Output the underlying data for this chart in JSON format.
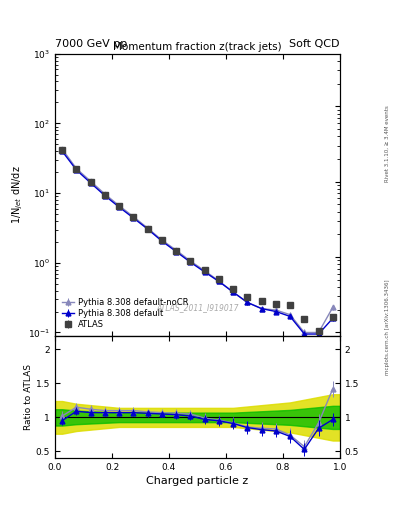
{
  "title": "Momentum fraction z(track jets)",
  "header_left": "7000 GeV pp",
  "header_right": "Soft QCD",
  "ylabel_main": "1/N$_{jet}$ dN/dz",
  "ylabel_ratio": "Ratio to ATLAS",
  "xlabel": "Charged particle z",
  "watermark": "ATLAS_2011_I919017",
  "rivet_label": "Rivet 3.1.10, ≥ 3.4M events",
  "arxiv_label": "mcplots.cern.ch [arXiv:1306.3436]",
  "atlas_x": [
    0.025,
    0.075,
    0.125,
    0.175,
    0.225,
    0.275,
    0.325,
    0.375,
    0.425,
    0.475,
    0.525,
    0.575,
    0.625,
    0.675,
    0.725,
    0.775,
    0.825,
    0.875,
    0.925,
    0.975
  ],
  "atlas_y": [
    42.0,
    22.0,
    14.5,
    9.5,
    6.5,
    4.5,
    3.1,
    2.1,
    1.5,
    1.05,
    0.78,
    0.58,
    0.42,
    0.32,
    0.28,
    0.26,
    0.25,
    0.155,
    0.105,
    0.165
  ],
  "atlas_yerr": [
    2.0,
    1.0,
    0.7,
    0.5,
    0.3,
    0.2,
    0.15,
    0.1,
    0.08,
    0.06,
    0.04,
    0.03,
    0.025,
    0.02,
    0.018,
    0.018,
    0.018,
    0.015,
    0.012,
    0.015
  ],
  "py_default_x": [
    0.025,
    0.075,
    0.125,
    0.175,
    0.225,
    0.275,
    0.325,
    0.375,
    0.425,
    0.475,
    0.525,
    0.575,
    0.625,
    0.675,
    0.725,
    0.775,
    0.825,
    0.875,
    0.925,
    0.975
  ],
  "py_default_y": [
    40.0,
    21.5,
    14.0,
    9.2,
    6.3,
    4.4,
    3.05,
    2.05,
    1.45,
    1.02,
    0.74,
    0.54,
    0.38,
    0.27,
    0.22,
    0.2,
    0.17,
    0.095,
    0.095,
    0.16
  ],
  "py_default_yerr": [
    1.5,
    0.8,
    0.5,
    0.4,
    0.25,
    0.18,
    0.12,
    0.09,
    0.07,
    0.05,
    0.035,
    0.028,
    0.022,
    0.018,
    0.015,
    0.014,
    0.013,
    0.01,
    0.01,
    0.012
  ],
  "py_nocr_x": [
    0.025,
    0.075,
    0.125,
    0.175,
    0.225,
    0.275,
    0.325,
    0.375,
    0.425,
    0.475,
    0.525,
    0.575,
    0.625,
    0.675,
    0.725,
    0.775,
    0.825,
    0.875,
    0.925,
    0.975
  ],
  "py_nocr_y": [
    43.0,
    22.5,
    14.8,
    9.7,
    6.6,
    4.6,
    3.15,
    2.12,
    1.52,
    1.06,
    0.77,
    0.55,
    0.38,
    0.27,
    0.22,
    0.21,
    0.18,
    0.1,
    0.1,
    0.23
  ],
  "py_nocr_yerr": [
    1.8,
    0.9,
    0.6,
    0.45,
    0.28,
    0.19,
    0.13,
    0.09,
    0.075,
    0.052,
    0.037,
    0.029,
    0.023,
    0.019,
    0.016,
    0.015,
    0.014,
    0.011,
    0.011,
    0.018
  ],
  "ratio_py_default": [
    0.952,
    1.09,
    1.07,
    1.07,
    1.07,
    1.07,
    1.06,
    1.05,
    1.04,
    1.02,
    0.97,
    0.95,
    0.91,
    0.85,
    0.82,
    0.8,
    0.72,
    0.53,
    0.84,
    0.97
  ],
  "ratio_py_default_err": [
    0.06,
    0.06,
    0.05,
    0.05,
    0.05,
    0.05,
    0.05,
    0.05,
    0.06,
    0.06,
    0.06,
    0.07,
    0.08,
    0.09,
    0.09,
    0.09,
    0.09,
    0.09,
    0.12,
    0.1
  ],
  "ratio_py_nocr": [
    1.02,
    1.15,
    1.12,
    1.1,
    1.1,
    1.1,
    1.08,
    1.07,
    1.06,
    1.05,
    0.99,
    0.96,
    0.92,
    0.86,
    0.84,
    0.83,
    0.74,
    0.57,
    0.92,
    1.42
  ],
  "ratio_py_nocr_err": [
    0.07,
    0.06,
    0.06,
    0.05,
    0.05,
    0.05,
    0.05,
    0.05,
    0.06,
    0.06,
    0.07,
    0.07,
    0.08,
    0.09,
    0.09,
    0.09,
    0.1,
    0.1,
    0.13,
    0.12
  ],
  "band_green_lo": [
    0.88,
    0.9,
    0.91,
    0.92,
    0.93,
    0.93,
    0.93,
    0.93,
    0.93,
    0.93,
    0.93,
    0.93,
    0.93,
    0.92,
    0.91,
    0.9,
    0.89,
    0.87,
    0.85,
    0.83
  ],
  "band_green_hi": [
    1.12,
    1.1,
    1.09,
    1.08,
    1.07,
    1.07,
    1.07,
    1.07,
    1.07,
    1.07,
    1.07,
    1.07,
    1.07,
    1.08,
    1.09,
    1.1,
    1.11,
    1.13,
    1.15,
    1.17
  ],
  "band_yellow_lo": [
    0.76,
    0.8,
    0.82,
    0.84,
    0.86,
    0.86,
    0.86,
    0.86,
    0.86,
    0.86,
    0.86,
    0.86,
    0.86,
    0.84,
    0.82,
    0.8,
    0.78,
    0.74,
    0.7,
    0.66
  ],
  "band_yellow_hi": [
    1.24,
    1.2,
    1.18,
    1.16,
    1.14,
    1.14,
    1.14,
    1.14,
    1.14,
    1.14,
    1.14,
    1.14,
    1.14,
    1.16,
    1.18,
    1.2,
    1.22,
    1.26,
    1.3,
    1.34
  ],
  "color_atlas": "#404040",
  "color_py_default": "#0000cc",
  "color_py_nocr": "#8888bb",
  "color_green": "#00bb00",
  "color_yellow": "#dddd00",
  "xlim": [
    0.0,
    1.0
  ],
  "ylim_main": [
    0.09,
    500
  ],
  "ylim_ratio": [
    0.4,
    2.2
  ],
  "main_yticks": [
    0.1,
    1,
    10,
    100,
    1000
  ],
  "ratio_yticks": [
    0.5,
    1.0,
    1.5,
    2.0
  ],
  "ratio_yticklabels": [
    "0.5",
    "1",
    "1.5",
    "2"
  ]
}
